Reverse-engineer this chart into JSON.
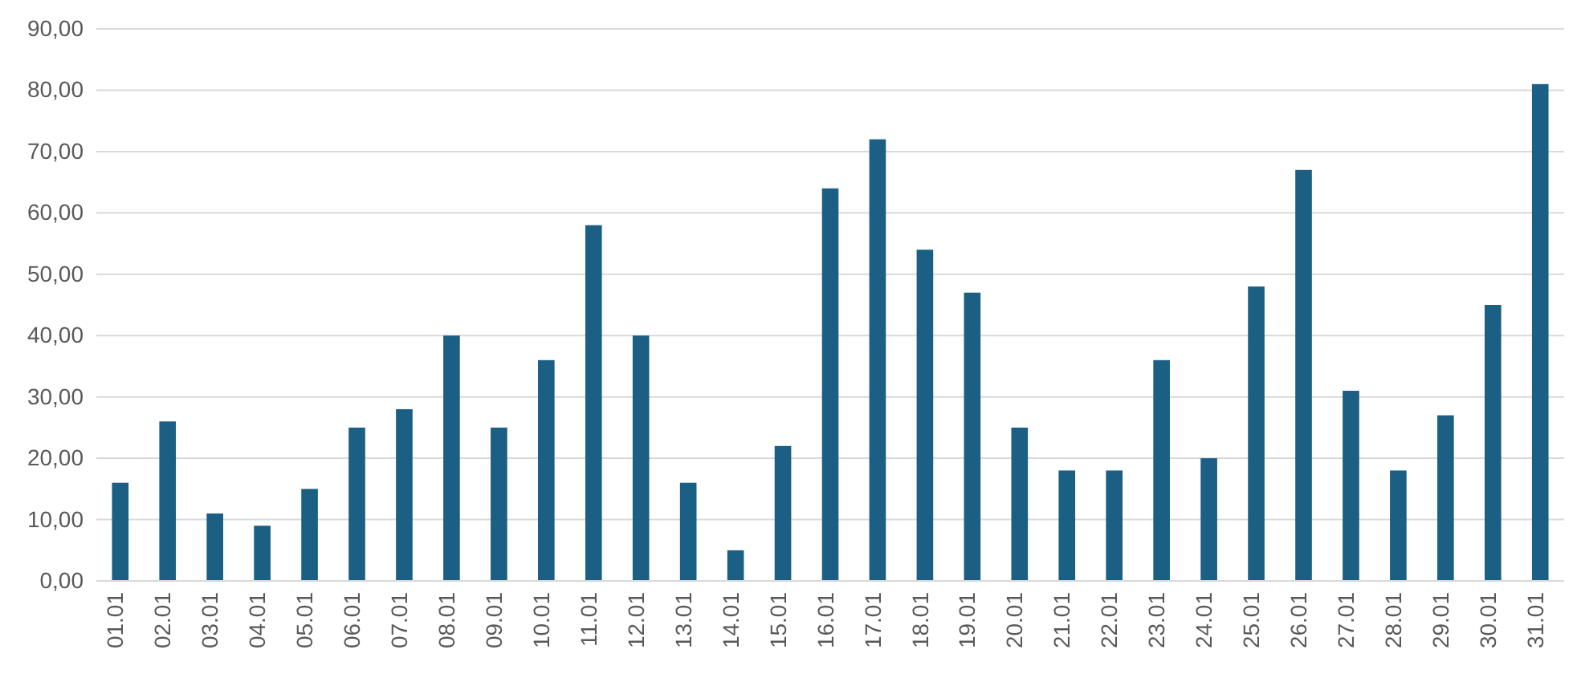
{
  "chart_data": {
    "type": "bar",
    "categories": [
      "01.01",
      "02.01",
      "03.01",
      "04.01",
      "05.01",
      "06.01",
      "07.01",
      "08.01",
      "09.01",
      "10.01",
      "11.01",
      "12.01",
      "13.01",
      "14.01",
      "15.01",
      "16.01",
      "17.01",
      "18.01",
      "19.01",
      "20.01",
      "21.01",
      "22.01",
      "23.01",
      "24.01",
      "25.01",
      "26.01",
      "27.01",
      "28.01",
      "29.01",
      "30.01",
      "31.01"
    ],
    "values": [
      16,
      26,
      11,
      9,
      15,
      25,
      28,
      40,
      25,
      36,
      58,
      40,
      16,
      5,
      22,
      64,
      72,
      54,
      47,
      25,
      18,
      18,
      36,
      20,
      48,
      67,
      31,
      18,
      27,
      45,
      81
    ],
    "color": "#1b5f84",
    "ylim": [
      0,
      90
    ],
    "yticks": [
      {
        "value": 0,
        "label": "0,00"
      },
      {
        "value": 10,
        "label": "10,00"
      },
      {
        "value": 20,
        "label": "20,00"
      },
      {
        "value": 30,
        "label": "30,00"
      },
      {
        "value": 40,
        "label": "40,00"
      },
      {
        "value": 50,
        "label": "50,00"
      },
      {
        "value": 60,
        "label": "60,00"
      },
      {
        "value": 70,
        "label": "70,00"
      },
      {
        "value": 80,
        "label": "80,00"
      },
      {
        "value": 90,
        "label": "90,00"
      }
    ],
    "grid": "y"
  }
}
